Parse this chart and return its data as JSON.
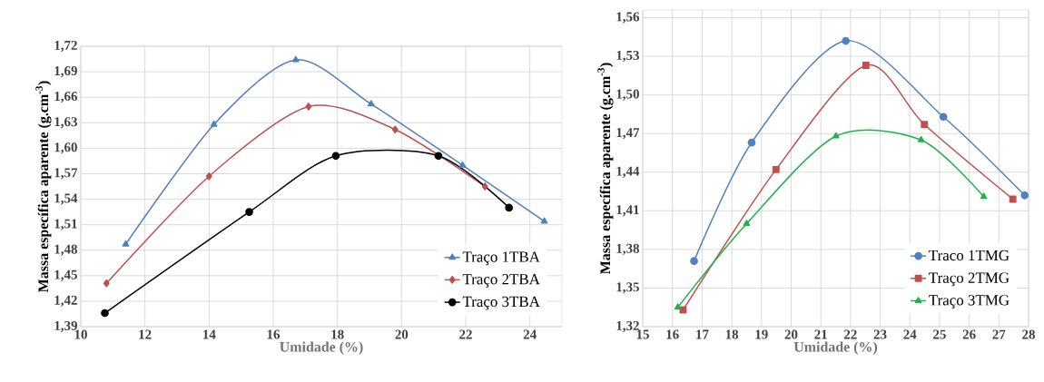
{
  "chart_data": [
    {
      "type": "line",
      "xlabel": "Umidade (%)",
      "ylabel": "Massa específica aparente (g.cm$^{-3}$)",
      "xlim": [
        10,
        25
      ],
      "xticks": [
        10,
        12,
        14,
        16,
        18,
        20,
        22,
        24
      ],
      "ylim": [
        1.39,
        1.72
      ],
      "yticks": [
        {
          "value": 1.39,
          "label": "1,39"
        },
        {
          "value": 1.42,
          "label": "1,42"
        },
        {
          "value": 1.45,
          "label": "1,45"
        },
        {
          "value": 1.48,
          "label": "1,48"
        },
        {
          "value": 1.51,
          "label": "1,51"
        },
        {
          "value": 1.54,
          "label": "1,54"
        },
        {
          "value": 1.57,
          "label": "1,57"
        },
        {
          "value": 1.6,
          "label": "1,60"
        },
        {
          "value": 1.63,
          "label": "1,63"
        },
        {
          "value": 1.66,
          "label": "1,66"
        },
        {
          "value": 1.69,
          "label": "1,69"
        },
        {
          "value": 1.72,
          "label": "1,72"
        }
      ],
      "grid": true,
      "legend": "bottom right",
      "line_style": "solid",
      "series": [
        {
          "name": "Traço 1TBA",
          "color": "#4f81bd",
          "marker": "triangle",
          "x": [
            11.4,
            14.15,
            16.7,
            19.05,
            21.9,
            24.45
          ],
          "values": [
            1.487,
            1.628,
            1.704,
            1.652,
            1.58,
            1.514
          ]
        },
        {
          "name": "Traço 2TBA",
          "color": "#c0504d",
          "marker": "diamond",
          "x": [
            10.8,
            14.0,
            17.1,
            19.8,
            22.6
          ],
          "values": [
            1.441,
            1.567,
            1.649,
            1.622,
            1.555
          ]
        },
        {
          "name": "Traço 3TBA",
          "color": "#000000",
          "marker": "circle",
          "x": [
            10.75,
            15.25,
            17.95,
            21.15,
            23.35
          ],
          "values": [
            1.406,
            1.525,
            1.591,
            1.591,
            1.53
          ]
        }
      ]
    },
    {
      "type": "line",
      "xlabel": "Umidade (%)",
      "ylabel": "Massa específica aparente (g.cm$^{-3}$)",
      "xlim": [
        15,
        28
      ],
      "xticks": [
        15,
        16,
        17,
        18,
        19,
        20,
        21,
        22,
        23,
        24,
        25,
        26,
        27,
        28
      ],
      "ylim": [
        1.32,
        1.566
      ],
      "yticks": [
        {
          "value": 1.32,
          "label": "1,32"
        },
        {
          "value": 1.35,
          "label": "1,35"
        },
        {
          "value": 1.38,
          "label": "1,38"
        },
        {
          "value": 1.41,
          "label": "1,41"
        },
        {
          "value": 1.44,
          "label": "1,44"
        },
        {
          "value": 1.47,
          "label": "1,47"
        },
        {
          "value": 1.5,
          "label": "1,50"
        },
        {
          "value": 1.53,
          "label": "1,53"
        },
        {
          "value": 1.56,
          "label": "1,56"
        }
      ],
      "grid": true,
      "legend": "bottom right",
      "line_style": "solid",
      "series": [
        {
          "name": "Traco 1TMG",
          "color": "#4f81bd",
          "marker": "circle",
          "x": [
            16.73,
            18.67,
            21.84,
            25.13,
            27.87
          ],
          "values": [
            1.371,
            1.463,
            1.542,
            1.483,
            1.422
          ]
        },
        {
          "name": "Traço 2TMG",
          "color": "#c0504d",
          "marker": "square",
          "x": [
            16.36,
            19.49,
            22.52,
            24.49,
            27.47
          ],
          "values": [
            1.333,
            1.442,
            1.523,
            1.477,
            1.419
          ]
        },
        {
          "name": "Traço 3TMG",
          "color": "#21b24b",
          "marker": "triangle",
          "x": [
            16.18,
            18.5,
            21.51,
            24.38,
            26.49
          ],
          "values": [
            1.335,
            1.4,
            1.468,
            1.465,
            1.421
          ]
        }
      ]
    }
  ]
}
